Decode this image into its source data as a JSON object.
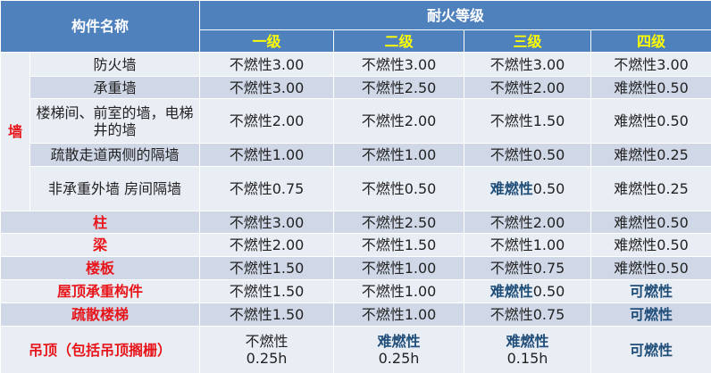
{
  "header": {
    "name": "构件名称",
    "rating": "耐火等级",
    "levels": [
      "一级",
      "二级",
      "三级",
      "四级"
    ]
  },
  "wall_group": "墙",
  "rows": [
    {
      "name": "防火墙",
      "cells": [
        {
          "m": "不燃性",
          "v": "3.00"
        },
        {
          "m": "不燃性",
          "v": "3.00"
        },
        {
          "m": "不燃性",
          "v": "3.00"
        },
        {
          "m": "不燃性",
          "v": "3.00"
        }
      ]
    },
    {
      "name": "承重墙",
      "cells": [
        {
          "m": "不燃性",
          "v": "3.00"
        },
        {
          "m": "不燃性",
          "v": "2.50"
        },
        {
          "m": "不燃性",
          "v": "2.00"
        },
        {
          "m": "难燃性",
          "v": "0.50"
        }
      ]
    },
    {
      "name": "楼梯间、前室的墙，电梯井的墙",
      "cells": [
        {
          "m": "不燃性",
          "v": "2.00"
        },
        {
          "m": "不燃性",
          "v": "2.00"
        },
        {
          "m": "不燃性",
          "v": "1.50"
        },
        {
          "m": "难燃性",
          "v": "0.50"
        }
      ]
    },
    {
      "name": "疏散走道两侧的隔墙",
      "cells": [
        {
          "m": "不燃性",
          "v": "1.00"
        },
        {
          "m": "不燃性",
          "v": "1.00"
        },
        {
          "m": "不燃性",
          "v": "0.50"
        },
        {
          "m": "难燃性",
          "v": "0.25"
        }
      ]
    },
    {
      "name": "非承重外墙 房间隔墙",
      "cells": [
        {
          "m": "不燃性",
          "v": "0.75"
        },
        {
          "m": "不燃性",
          "v": "0.50"
        },
        {
          "m": "难燃性",
          "v": "0.50",
          "hl": true
        },
        {
          "m": "难燃性",
          "v": "0.25"
        }
      ]
    },
    {
      "name": "柱",
      "cells": [
        {
          "m": "不燃性",
          "v": "3.00"
        },
        {
          "m": "不燃性",
          "v": "2.50"
        },
        {
          "m": "不燃性",
          "v": "2.00"
        },
        {
          "m": "难燃性",
          "v": "0.50"
        }
      ]
    },
    {
      "name": "梁",
      "cells": [
        {
          "m": "不燃性",
          "v": "2.00"
        },
        {
          "m": "不燃性",
          "v": "1.50"
        },
        {
          "m": "不燃性",
          "v": "1.00"
        },
        {
          "m": "难燃性",
          "v": "0.50"
        }
      ]
    },
    {
      "name": "楼板",
      "cells": [
        {
          "m": "不燃性",
          "v": "1.50"
        },
        {
          "m": "不燃性",
          "v": "1.00"
        },
        {
          "m": "不燃性",
          "v": "0.75"
        },
        {
          "m": "难燃性",
          "v": "0.50"
        }
      ]
    },
    {
      "name": "屋顶承重构件",
      "cells": [
        {
          "m": "不燃性",
          "v": "1.50"
        },
        {
          "m": "不燃性",
          "v": "1.00"
        },
        {
          "m": "难燃性",
          "v": "0.50",
          "hl": true
        },
        {
          "m": "可燃性",
          "v": "",
          "hl": true
        }
      ]
    },
    {
      "name": "疏散楼梯",
      "cells": [
        {
          "m": "不燃性",
          "v": "1.50"
        },
        {
          "m": "不燃性",
          "v": "1.00"
        },
        {
          "m": "不燃性",
          "v": "0.75"
        },
        {
          "m": "可燃性",
          "v": "",
          "hl": true
        }
      ]
    },
    {
      "name": "吊顶（包括吊顶搁栅）",
      "cells": [
        {
          "m": "不燃性",
          "v": "0.25h",
          "br": true
        },
        {
          "m": "难燃性",
          "v": "0.25h",
          "br": true,
          "hl": true
        },
        {
          "m": "难燃性",
          "v": "0.15h",
          "br": true,
          "hl": true
        },
        {
          "m": "可燃性",
          "v": "",
          "hl": true
        }
      ]
    }
  ]
}
